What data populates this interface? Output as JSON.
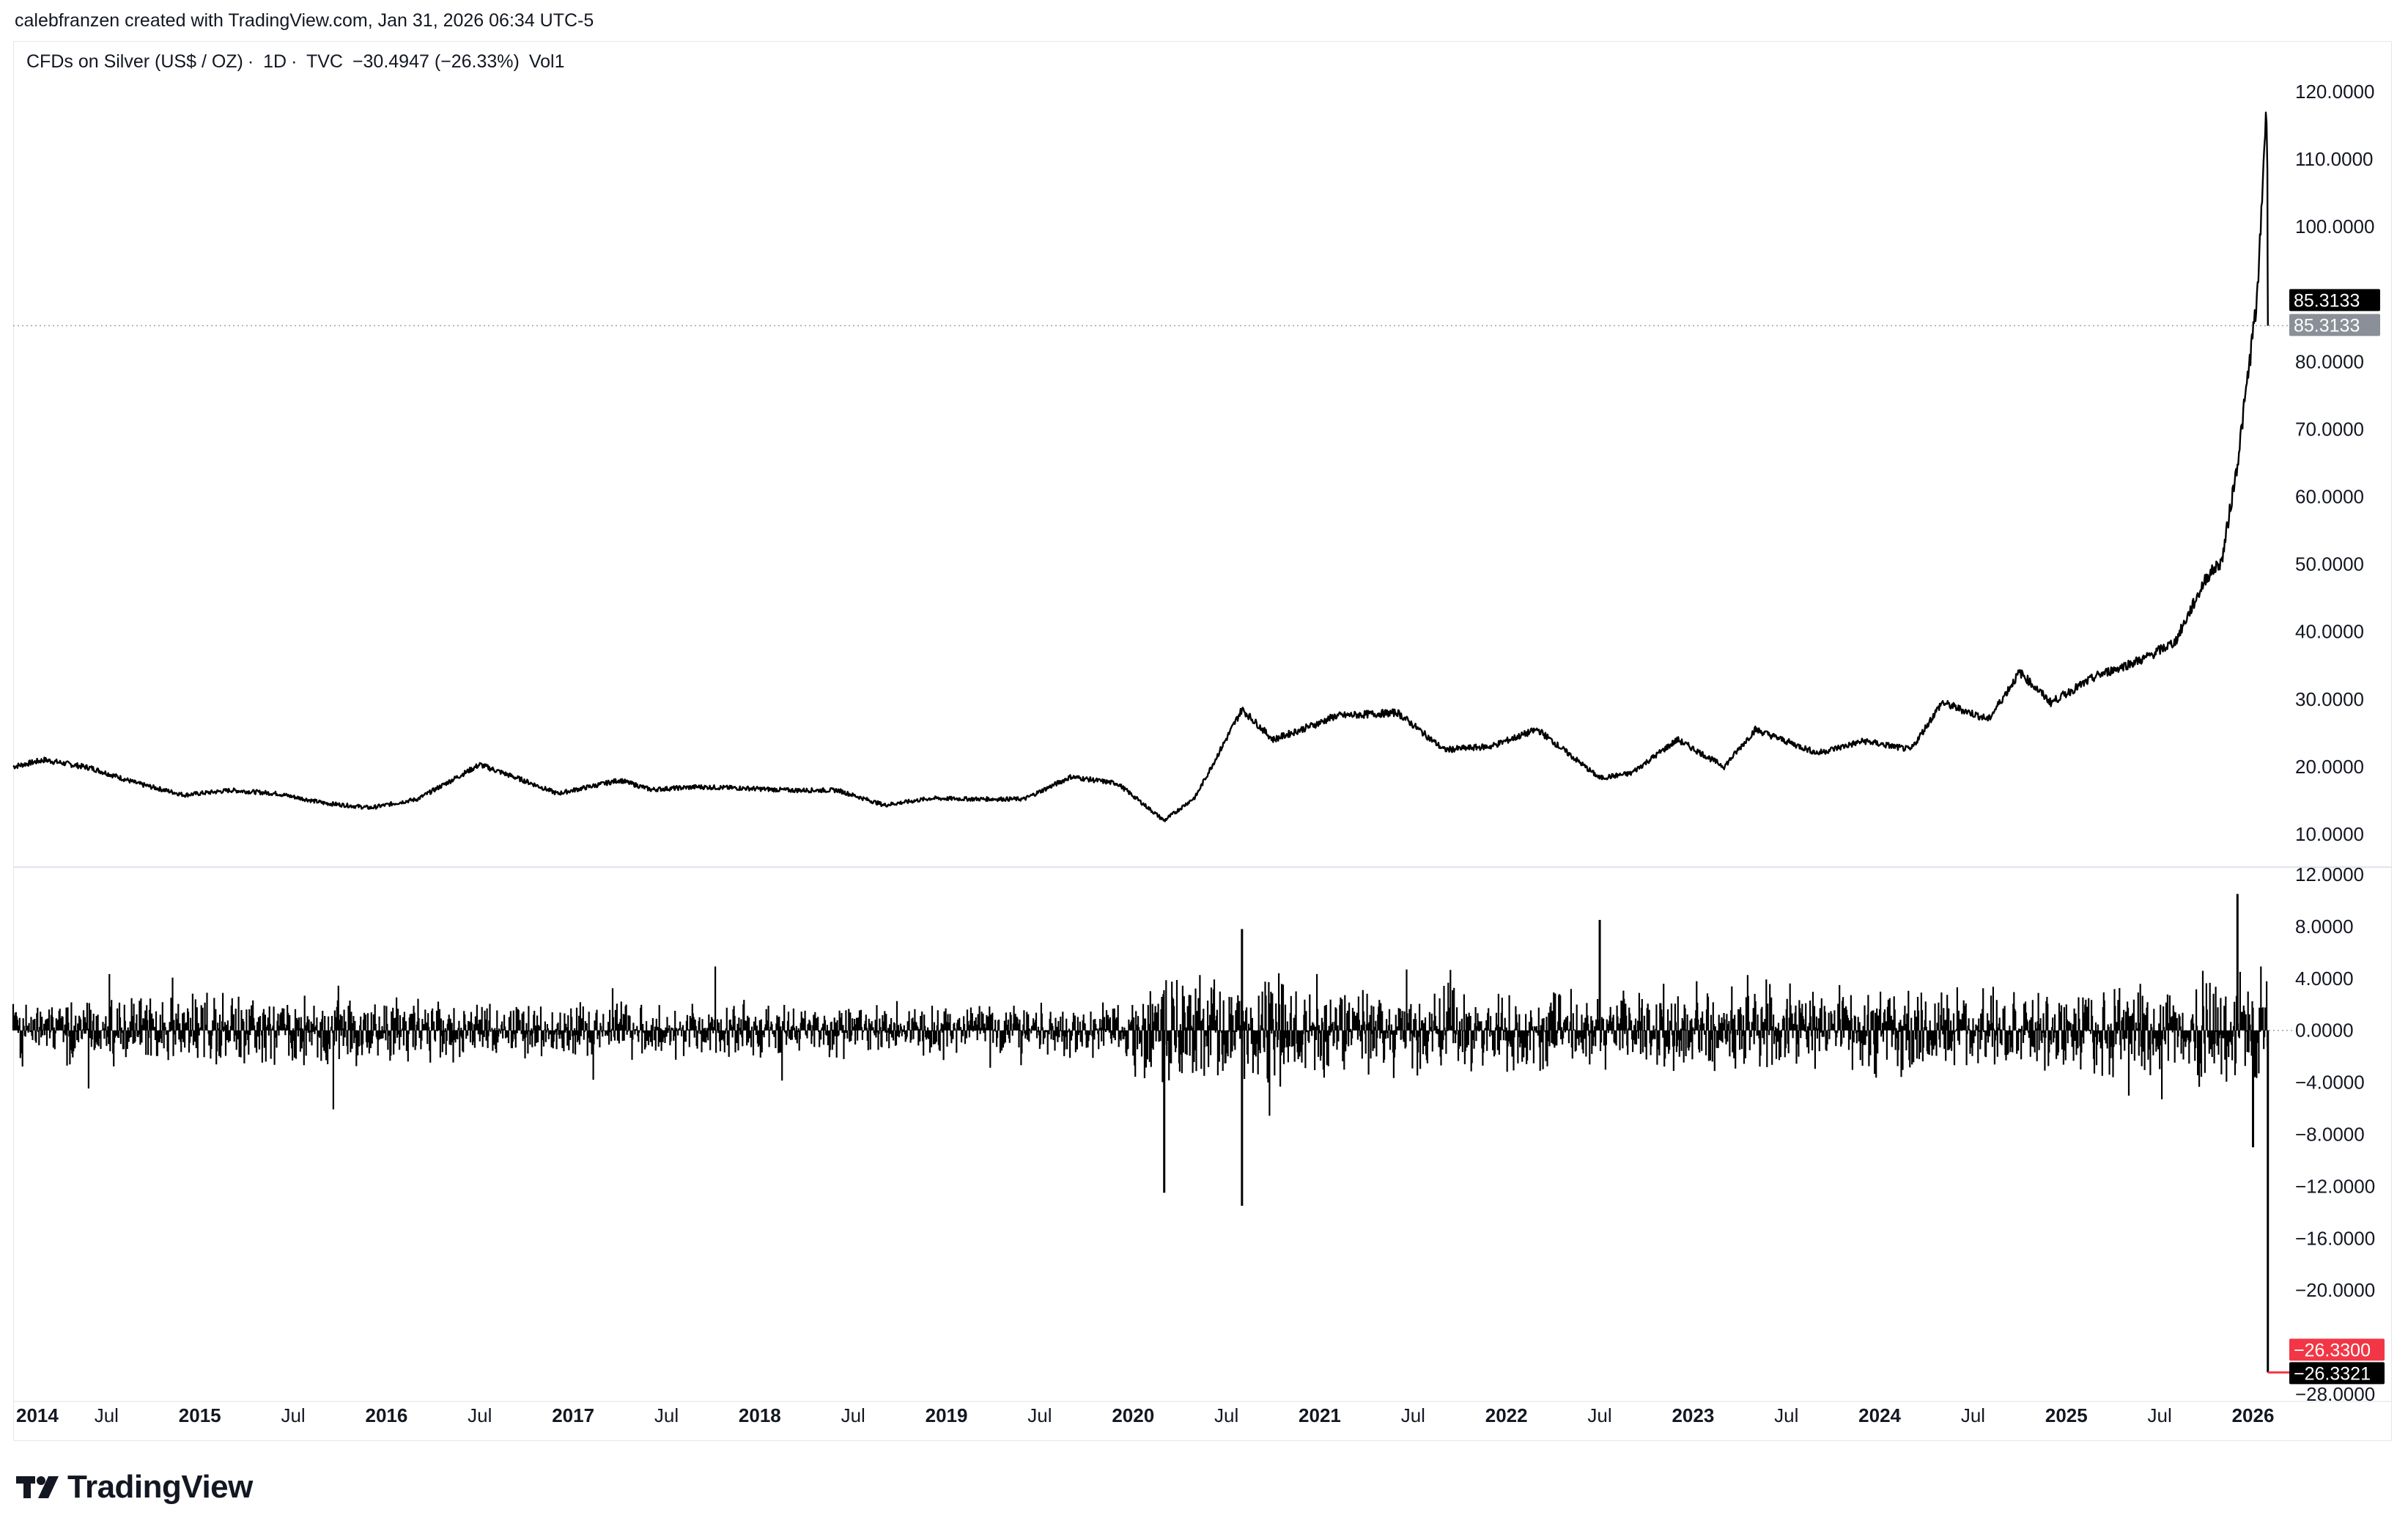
{
  "header": {
    "attribution": "calebfranzen created with TradingView.com, Jan 31, 2026 06:34 UTC-5"
  },
  "legend": {
    "symbol": "CFDs on Silver (US$ / OZ)",
    "interval": "1D",
    "source": "TVC",
    "change": "−30.4947 (−26.33%)",
    "study": "Vol1"
  },
  "branding": {
    "logo_text": "TradingView"
  },
  "colors": {
    "line": "#000000",
    "grid_dotted": "#9aa0a6",
    "tag_black": "#000000",
    "tag_gray": "#8a8f98",
    "tag_red": "#f23645"
  },
  "chart_data": [
    {
      "type": "line",
      "title": "CFDs on Silver (US$ / OZ)",
      "ylabel": "",
      "xlabel": "",
      "ylim": [
        6,
        123
      ],
      "y_ticks": [
        "120.0000",
        "110.0000",
        "100.0000",
        "80.0000",
        "70.0000",
        "60.0000",
        "50.0000",
        "40.0000",
        "30.0000",
        "20.0000",
        "10.0000"
      ],
      "x_ticks": [
        "2014",
        "Jul",
        "2015",
        "Jul",
        "2016",
        "Jul",
        "2017",
        "Jul",
        "2018",
        "Jul",
        "2019",
        "Jul",
        "2020",
        "Jul",
        "2021",
        "Jul",
        "2022",
        "Jul",
        "2023",
        "Jul",
        "2024",
        "Jul",
        "2025",
        "Jul",
        "2026"
      ],
      "last_value": 85.3133,
      "last_value_labels": [
        "85.3133",
        "85.3133"
      ],
      "series": [
        {
          "x": [
            "2014-01",
            "2014-03",
            "2014-06",
            "2014-09",
            "2014-12",
            "2015-03",
            "2015-06",
            "2015-09",
            "2015-12",
            "2016-03",
            "2016-07",
            "2016-10",
            "2016-12",
            "2017-04",
            "2017-06",
            "2017-09",
            "2017-12",
            "2018-03",
            "2018-06",
            "2018-09",
            "2018-12",
            "2019-03",
            "2019-06",
            "2019-09",
            "2019-12",
            "2020-03",
            "2020-05",
            "2020-08",
            "2020-10",
            "2021-01",
            "2021-02",
            "2021-06",
            "2021-09",
            "2021-12",
            "2022-03",
            "2022-07",
            "2022-09",
            "2022-12",
            "2023-03",
            "2023-05",
            "2023-09",
            "2023-12",
            "2024-03",
            "2024-05",
            "2024-08",
            "2024-10",
            "2024-12",
            "2025-03",
            "2025-06",
            "2025-08",
            "2025-10",
            "2025-11",
            "2025-12",
            "2026-01-10",
            "2026-01-26",
            "2026-01-29",
            "2026-01-30"
          ],
          "y": [
            20.0,
            21.0,
            19.8,
            17.5,
            15.8,
            16.5,
            16.0,
            14.6,
            13.9,
            15.2,
            20.3,
            17.8,
            16.0,
            18.0,
            16.6,
            17.0,
            16.8,
            16.5,
            16.5,
            14.3,
            15.3,
            15.2,
            15.2,
            18.5,
            17.5,
            12.0,
            15.5,
            28.5,
            24.0,
            26.5,
            27.5,
            28.0,
            22.5,
            23.0,
            25.5,
            18.3,
            19.0,
            24.0,
            20.0,
            25.5,
            22.0,
            23.8,
            22.5,
            29.5,
            27.0,
            34.0,
            29.5,
            33.5,
            36.0,
            38.5,
            48.0,
            50.5,
            65.0,
            90.0,
            117.0,
            110.0,
            85.3133
          ]
        }
      ]
    },
    {
      "type": "bar",
      "title": "",
      "ylabel": "",
      "xlabel": "",
      "ylim": [
        -28,
        12
      ],
      "y_ticks": [
        "12.0000",
        "8.0000",
        "4.0000",
        "0.0000",
        "−4.0000",
        "−8.0000",
        "−12.0000",
        "−16.0000",
        "−20.0000",
        "−26.3300",
        "−26.3321",
        "−28.0000"
      ],
      "last_value": -26.3321,
      "last_value_labels": [
        "−26.3300",
        "−26.3321"
      ],
      "notable_spikes": [
        {
          "x": "2020-03",
          "y": -12.5
        },
        {
          "x": "2020-08",
          "y": -13.5
        },
        {
          "x": "2020-08",
          "y": 7.8
        },
        {
          "x": "2022-07",
          "y": 8.5
        },
        {
          "x": "2025-12",
          "y": 10.5
        },
        {
          "x": "2026-01",
          "y": -9.0
        },
        {
          "x": "2026-01-30",
          "y": -26.3321
        }
      ]
    }
  ]
}
